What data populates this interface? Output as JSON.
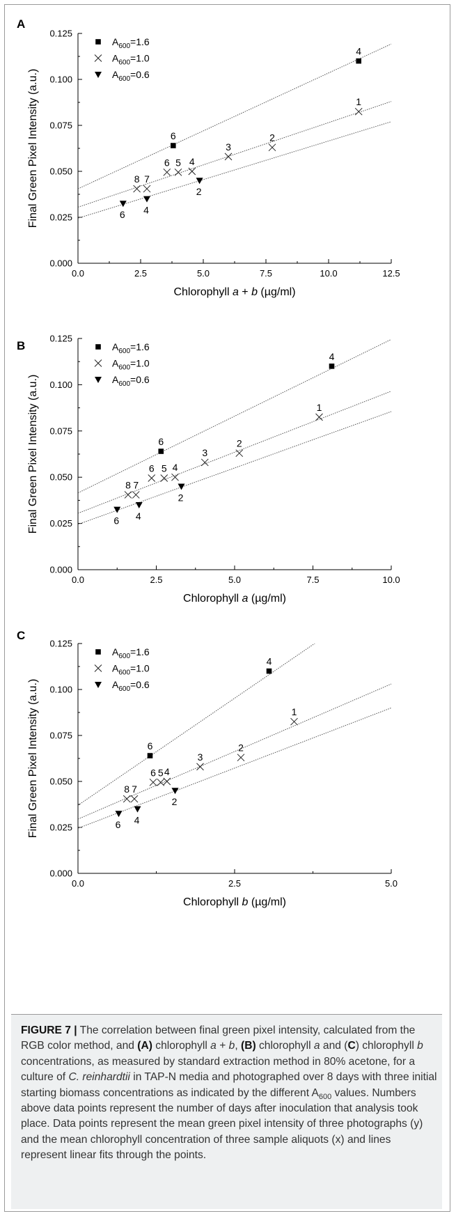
{
  "chart_data": [
    {
      "type": "scatter",
      "panel": "A",
      "xlabel_parts": [
        "Chlorophyll ",
        "a",
        " + ",
        "b",
        " (µg/ml)"
      ],
      "ylabel": "Final Green Pixel Intensity (a.u.)",
      "xlim": [
        0,
        12.5
      ],
      "ylim": [
        0,
        0.125
      ],
      "xticks": [
        "0.0",
        "2.5",
        "5.0",
        "7.5",
        "10.0",
        "12.5"
      ],
      "yticks": [
        "0.000",
        "0.025",
        "0.050",
        "0.075",
        "0.100",
        "0.125"
      ],
      "legend_position": "top-left",
      "series": [
        {
          "name": "A600=1.6",
          "label_main": "A",
          "label_sub": "600",
          "label_rest": "=1.6",
          "marker": "square",
          "points": [
            {
              "x": 3.8,
              "y": 0.064,
              "label": "6"
            },
            {
              "x": 11.2,
              "y": 0.11,
              "label": "4"
            }
          ],
          "fit": {
            "intercept": 0.0405,
            "slope": 0.0063
          }
        },
        {
          "name": "A600=1.0",
          "label_main": "A",
          "label_sub": "600",
          "label_rest": "=1.0",
          "marker": "x",
          "points": [
            {
              "x": 2.35,
              "y": 0.0405,
              "label": "8"
            },
            {
              "x": 2.75,
              "y": 0.0405,
              "label": "7"
            },
            {
              "x": 3.55,
              "y": 0.0495,
              "label": "6"
            },
            {
              "x": 4.0,
              "y": 0.0495,
              "label": "5"
            },
            {
              "x": 4.55,
              "y": 0.05,
              "label": "4"
            },
            {
              "x": 6.0,
              "y": 0.058,
              "label": "3"
            },
            {
              "x": 7.75,
              "y": 0.063,
              "label": "2"
            },
            {
              "x": 11.2,
              "y": 0.0825,
              "label": "1"
            }
          ],
          "fit": {
            "intercept": 0.0305,
            "slope": 0.0046
          }
        },
        {
          "name": "A600=0.6",
          "label_main": "A",
          "label_sub": "600",
          "label_rest": "=0.6",
          "marker": "triangle-down",
          "points": [
            {
              "x": 1.8,
              "y": 0.0325,
              "label": "6"
            },
            {
              "x": 2.75,
              "y": 0.035,
              "label": "4"
            },
            {
              "x": 4.85,
              "y": 0.045,
              "label": "2"
            }
          ],
          "fit": {
            "intercept": 0.0245,
            "slope": 0.0042
          }
        }
      ]
    },
    {
      "type": "scatter",
      "panel": "B",
      "xlabel_parts": [
        "Chlorophyll ",
        "a",
        " (µg/ml)"
      ],
      "ylabel": "Final Green Pixel Intensity (a.u.)",
      "xlim": [
        0,
        10
      ],
      "ylim": [
        0,
        0.125
      ],
      "xticks": [
        "0.0",
        "2.5",
        "5.0",
        "7.5",
        "10.0"
      ],
      "yticks": [
        "0.000",
        "0.025",
        "0.050",
        "0.075",
        "0.100",
        "0.125"
      ],
      "legend_position": "top-left",
      "series": [
        {
          "name": "A600=1.6",
          "label_main": "A",
          "label_sub": "600",
          "label_rest": "=1.6",
          "marker": "square",
          "points": [
            {
              "x": 2.65,
              "y": 0.064,
              "label": "6"
            },
            {
              "x": 8.1,
              "y": 0.11,
              "label": "4"
            }
          ],
          "fit": {
            "intercept": 0.0415,
            "slope": 0.0083
          }
        },
        {
          "name": "A600=1.0",
          "label_main": "A",
          "label_sub": "600",
          "label_rest": "=1.0",
          "marker": "x",
          "points": [
            {
              "x": 1.6,
              "y": 0.0405,
              "label": "8"
            },
            {
              "x": 1.85,
              "y": 0.0405,
              "label": "7"
            },
            {
              "x": 2.35,
              "y": 0.0495,
              "label": "6"
            },
            {
              "x": 2.75,
              "y": 0.0495,
              "label": "5"
            },
            {
              "x": 3.1,
              "y": 0.05,
              "label": "4"
            },
            {
              "x": 4.05,
              "y": 0.058,
              "label": "3"
            },
            {
              "x": 5.15,
              "y": 0.063,
              "label": "2"
            },
            {
              "x": 7.7,
              "y": 0.0825,
              "label": "1"
            }
          ],
          "fit": {
            "intercept": 0.0305,
            "slope": 0.0066
          }
        },
        {
          "name": "A600=0.6",
          "label_main": "A",
          "label_sub": "600",
          "label_rest": "=0.6",
          "marker": "triangle-down",
          "points": [
            {
              "x": 1.25,
              "y": 0.0325,
              "label": "6"
            },
            {
              "x": 1.95,
              "y": 0.035,
              "label": "4"
            },
            {
              "x": 3.3,
              "y": 0.045,
              "label": "2"
            }
          ],
          "fit": {
            "intercept": 0.0245,
            "slope": 0.0061
          }
        }
      ]
    },
    {
      "type": "scatter",
      "panel": "C",
      "xlabel_parts": [
        "Chlorophyll ",
        "b",
        " (µg/ml)"
      ],
      "ylabel": "Final Green Pixel Intensity (a.u.)",
      "xlim": [
        0,
        5
      ],
      "ylim": [
        0,
        0.125
      ],
      "xticks": [
        "0.0",
        "2.5",
        "5.0"
      ],
      "yticks": [
        "0.000",
        "0.025",
        "0.050",
        "0.075",
        "0.100",
        "0.125"
      ],
      "legend_position": "top-left",
      "series": [
        {
          "name": "A600=1.6",
          "label_main": "A",
          "label_sub": "600",
          "label_rest": "=1.6",
          "marker": "square",
          "points": [
            {
              "x": 1.15,
              "y": 0.064,
              "label": "6"
            },
            {
              "x": 3.05,
              "y": 0.11,
              "label": "4"
            }
          ],
          "fit": {
            "intercept": 0.037,
            "slope": 0.0233
          }
        },
        {
          "name": "A600=1.0",
          "label_main": "A",
          "label_sub": "600",
          "label_rest": "=1.0",
          "marker": "x",
          "points": [
            {
              "x": 0.78,
              "y": 0.0405,
              "label": "8"
            },
            {
              "x": 0.9,
              "y": 0.0405,
              "label": "7"
            },
            {
              "x": 1.2,
              "y": 0.0495,
              "label": "6"
            },
            {
              "x": 1.32,
              "y": 0.0495,
              "label": "5"
            },
            {
              "x": 1.42,
              "y": 0.05,
              "label": "4"
            },
            {
              "x": 1.95,
              "y": 0.058,
              "label": "3"
            },
            {
              "x": 2.6,
              "y": 0.063,
              "label": "2"
            },
            {
              "x": 3.45,
              "y": 0.0825,
              "label": "1"
            }
          ],
          "fit": {
            "intercept": 0.0295,
            "slope": 0.0147
          }
        },
        {
          "name": "A600=0.6",
          "label_main": "A",
          "label_sub": "600",
          "label_rest": "=0.6",
          "marker": "triangle-down",
          "points": [
            {
              "x": 0.65,
              "y": 0.0325,
              "label": "6"
            },
            {
              "x": 0.95,
              "y": 0.035,
              "label": "4"
            },
            {
              "x": 1.55,
              "y": 0.045,
              "label": "2"
            }
          ],
          "fit": {
            "intercept": 0.0245,
            "slope": 0.0131
          }
        }
      ]
    }
  ],
  "caption": {
    "figure_label": "FIGURE 7 |",
    "runs": [
      {
        "text": " The correlation between final green pixel intensity, calculated from the RGB color method, and ",
        "style": "normal"
      },
      {
        "text": "(A)",
        "style": "bold"
      },
      {
        "text": " chlorophyll ",
        "style": "normal"
      },
      {
        "text": "a",
        "style": "italic"
      },
      {
        "text": " + ",
        "style": "normal"
      },
      {
        "text": "b",
        "style": "italic"
      },
      {
        "text": ", ",
        "style": "normal"
      },
      {
        "text": "(B)",
        "style": "bold"
      },
      {
        "text": " chlorophyll ",
        "style": "normal"
      },
      {
        "text": "a",
        "style": "italic"
      },
      {
        "text": " and (",
        "style": "normal"
      },
      {
        "text": "C",
        "style": "bold"
      },
      {
        "text": ") chlorophyll ",
        "style": "normal"
      },
      {
        "text": "b",
        "style": "italic"
      },
      {
        "text": " concentrations, as measured by standard extraction method in 80% acetone, for a culture of ",
        "style": "normal"
      },
      {
        "text": "C. reinhardtii",
        "style": "italic"
      },
      {
        "text": " in TAP-N media and photographed over 8 days with three initial starting biomass concentrations as indicated by the different A",
        "style": "normal"
      },
      {
        "text": "600",
        "style": "sub"
      },
      {
        "text": " values. Numbers above data points represent the number of days after inoculation that analysis took place. Data points represent the mean green pixel intensity of three photographs (y) and the mean chlorophyll concentration of three sample aliquots (x) and lines represent linear fits through the points.",
        "style": "normal"
      }
    ]
  }
}
